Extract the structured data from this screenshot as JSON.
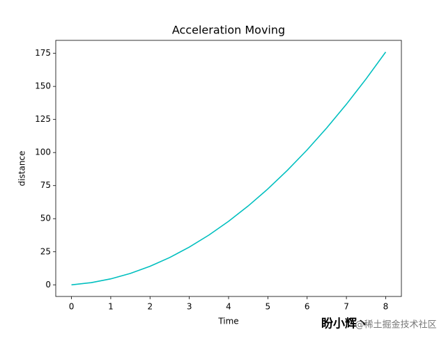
{
  "chart_data": {
    "type": "line",
    "title": "Acceleration Moving",
    "xlabel": "Time",
    "ylabel": "distance",
    "x": [
      0,
      0.5,
      1,
      1.5,
      2,
      2.5,
      3,
      3.5,
      4,
      4.5,
      5,
      5.5,
      6,
      6.5,
      7,
      7.5,
      8
    ],
    "values": [
      0,
      1.625,
      4.5,
      8.625,
      14,
      20.625,
      28.5,
      37.625,
      48,
      59.625,
      72.5,
      86.625,
      102,
      118.625,
      136.5,
      155.625,
      176
    ],
    "color": "#00bfbf",
    "xlim": [
      -0.4,
      8.4
    ],
    "xticks": [
      0,
      1,
      2,
      3,
      4,
      5,
      6,
      7,
      8
    ],
    "ylim": [
      -8.8,
      184.8
    ],
    "yticks": [
      0,
      25,
      50,
      75,
      100,
      125,
      150,
      175
    ],
    "grid": false
  },
  "watermark": {
    "author": "盼小辉丶",
    "site": "@稀土掘金技术社区"
  }
}
